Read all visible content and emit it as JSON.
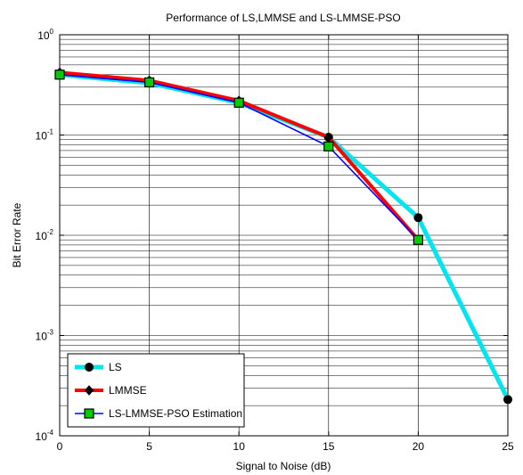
{
  "chart_data": {
    "type": "line",
    "title": "Performance of LS,LMMSE and LS-LMMSE-PSO",
    "xlabel": "Signal to Noise (dB)",
    "ylabel": "Bit Error Rate",
    "xlim": [
      0,
      25
    ],
    "ylim": [
      0.0001,
      1
    ],
    "yscale": "log",
    "grid": true,
    "legend_position": "bottom-left",
    "x_ticks": [
      0,
      5,
      10,
      15,
      20,
      25
    ],
    "x_tick_labels": [
      "0",
      "5",
      "10",
      "15",
      "20",
      "25"
    ],
    "y_ticks": [
      1,
      0.1,
      0.01,
      0.001,
      0.0001
    ],
    "y_tick_labels": [
      {
        "base": "10",
        "exp": "0"
      },
      {
        "base": "10",
        "exp": "-1"
      },
      {
        "base": "10",
        "exp": "-2"
      },
      {
        "base": "10",
        "exp": "-3"
      },
      {
        "base": "10",
        "exp": "-4"
      }
    ],
    "series": [
      {
        "name": "LS",
        "color": "#00e5ee",
        "marker": "circle",
        "marker_color": "#000000",
        "x": [
          0,
          5,
          10,
          15,
          20,
          25
        ],
        "y": [
          0.4,
          0.33,
          0.21,
          0.095,
          0.015,
          0.00023
        ]
      },
      {
        "name": "LMMSE",
        "color": "#ff0000",
        "marker": "diamond",
        "marker_color": "#000000",
        "x": [
          0,
          5,
          10,
          15,
          20
        ],
        "y": [
          0.42,
          0.35,
          0.22,
          0.095,
          0.009
        ]
      },
      {
        "name": "LS-LMMSE-PSO Estimation",
        "color": "#0000ff",
        "marker": "square",
        "marker_color": "#00cc00",
        "x": [
          0,
          5,
          10,
          15,
          20
        ],
        "y": [
          0.4,
          0.335,
          0.21,
          0.077,
          0.009
        ]
      }
    ]
  }
}
